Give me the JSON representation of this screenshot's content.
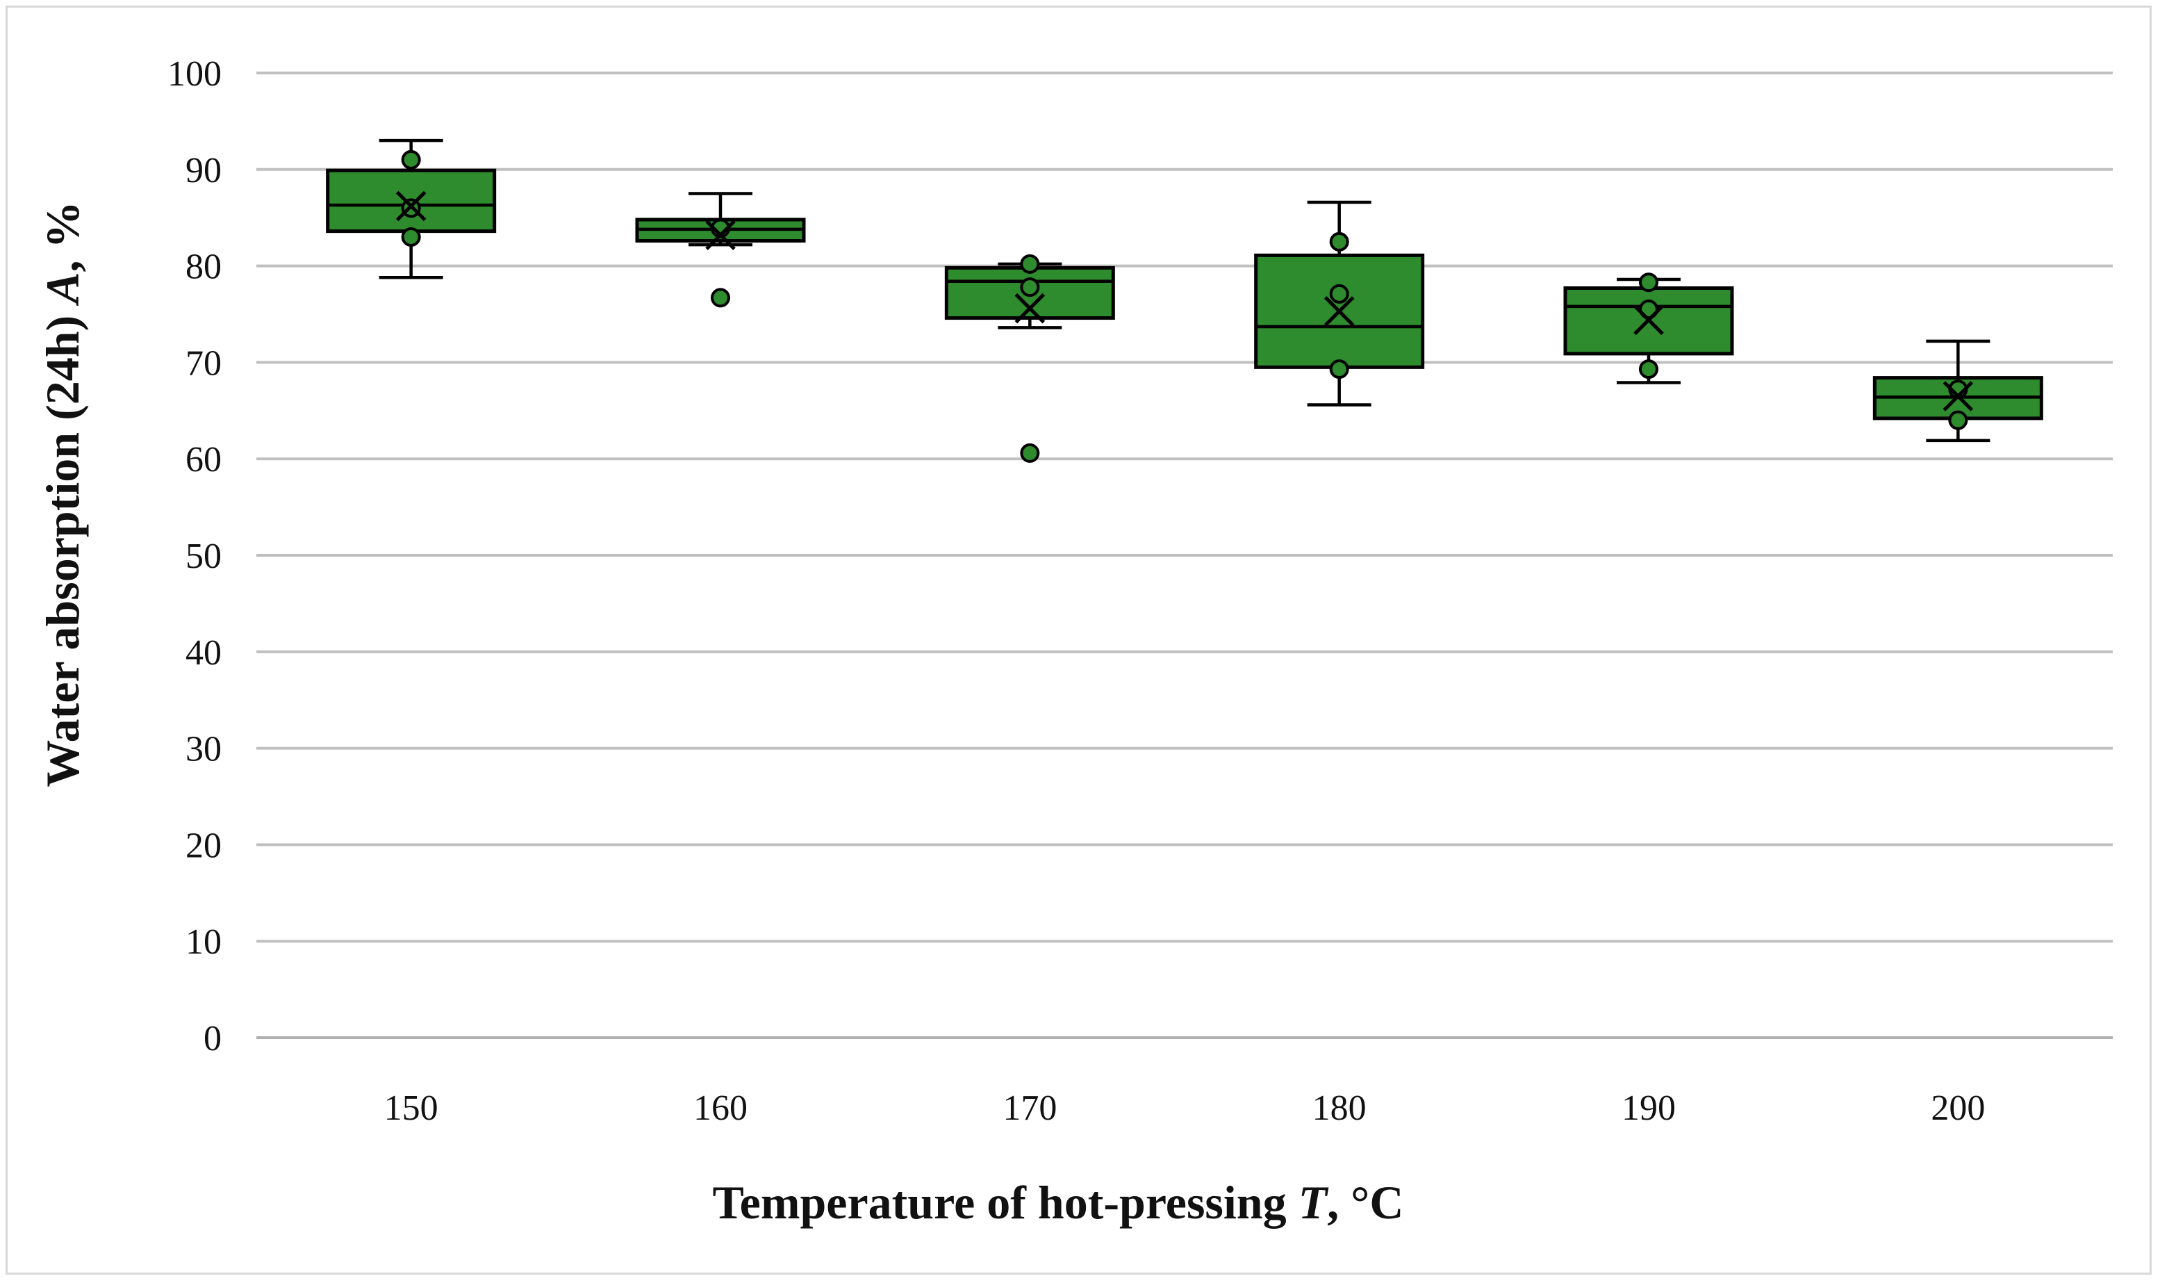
{
  "chart_data": {
    "type": "box",
    "title": "",
    "xlabel": {
      "text": "Temperature of hot-pressing ",
      "symbol": "T",
      "unit": ", °C"
    },
    "ylabel": {
      "text": "Water absorption (24h) ",
      "symbol": "A",
      "unit": ", %"
    },
    "ylim": [
      0,
      100
    ],
    "yticks": [
      0,
      10,
      20,
      30,
      40,
      50,
      60,
      70,
      80,
      90,
      100
    ],
    "grid": true,
    "colors": {
      "box_fill": "#2e8b2e",
      "box_stroke": "#000000",
      "grid": "#c0c0c0",
      "point_fill": "#2e8b2e"
    },
    "categories": [
      "150",
      "160",
      "170",
      "180",
      "190",
      "200"
    ],
    "boxes": [
      {
        "category": "150",
        "whisker_low": 78.8,
        "q1": 83.6,
        "median": 86.3,
        "q3": 89.9,
        "whisker_high": 93.0,
        "mean": 86.2,
        "points": [
          91.0,
          86.0,
          83.0
        ],
        "outliers": []
      },
      {
        "category": "160",
        "whisker_low": 82.2,
        "q1": 82.6,
        "median": 83.8,
        "q3": 84.8,
        "whisker_high": 87.5,
        "mean": 83.2,
        "points": [
          83.9
        ],
        "outliers": [
          76.7
        ]
      },
      {
        "category": "170",
        "whisker_low": 73.6,
        "q1": 74.6,
        "median": 78.4,
        "q3": 79.8,
        "whisker_high": 80.2,
        "mean": 75.6,
        "points": [
          80.2,
          77.8
        ],
        "outliers": [
          60.6
        ]
      },
      {
        "category": "180",
        "whisker_low": 65.6,
        "q1": 69.5,
        "median": 73.7,
        "q3": 81.1,
        "whisker_high": 86.6,
        "mean": 75.3,
        "points": [
          82.5,
          77.1,
          69.3
        ],
        "outliers": []
      },
      {
        "category": "190",
        "whisker_low": 67.9,
        "q1": 70.9,
        "median": 75.8,
        "q3": 77.7,
        "whisker_high": 78.6,
        "mean": 74.4,
        "points": [
          78.3,
          75.5,
          69.3
        ],
        "outliers": []
      },
      {
        "category": "200",
        "whisker_low": 61.9,
        "q1": 64.2,
        "median": 66.4,
        "q3": 68.4,
        "whisker_high": 72.2,
        "mean": 66.5,
        "points": [
          67.2,
          64.0
        ],
        "outliers": []
      }
    ]
  }
}
